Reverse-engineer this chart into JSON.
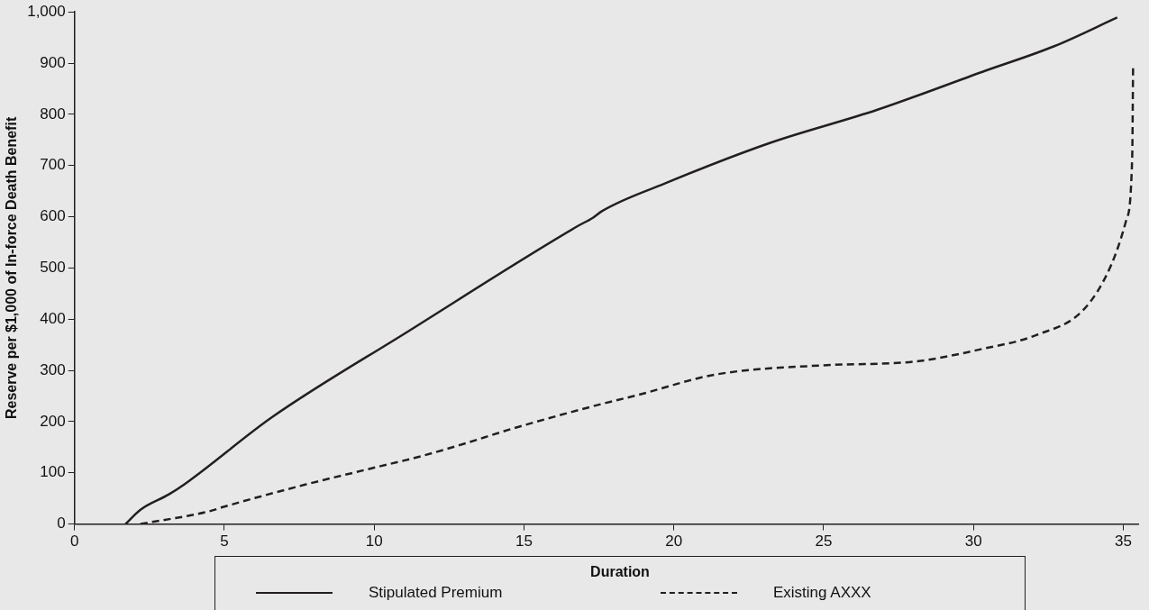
{
  "chart_data": {
    "type": "line",
    "xlabel": "Duration",
    "ylabel": "Reserve per $1,000 of In-force Death Benefit",
    "xlim": [
      0,
      35.5
    ],
    "xticks": [
      0,
      5,
      10,
      15,
      20,
      25,
      30,
      35
    ],
    "ylim": [
      0,
      1000
    ],
    "yticks": [
      0,
      100,
      200,
      300,
      400,
      500,
      600,
      700,
      800,
      900,
      {
        "value": 1000,
        "label": "1,000"
      }
    ],
    "grid": false,
    "legend": "bottom",
    "marker": "none",
    "series": [
      {
        "name": "Stipulated Premium",
        "color": "#231f20",
        "line_style": "solid",
        "x": [
          1.7,
          2.2,
          3.15,
          3.7,
          6.6,
          11.1,
          16.8,
          17.3,
          17.6,
          19.7,
          23.2,
          26.8,
          30.3,
          32.7,
          34.8
        ],
        "values": [
          0,
          28,
          58,
          79,
          209,
          375,
          582,
          598,
          611,
          665,
          744,
          809,
          883,
          933,
          989
        ]
      },
      {
        "name": "Existing AXXX",
        "color": "#231f20",
        "line_style": "dashed",
        "x": [
          2.2,
          4.5,
          5,
          7.7,
          10,
          11.6,
          12.9,
          14.6,
          17.3,
          18.8,
          21.4,
          25,
          28,
          30.3,
          32.1,
          33.7,
          34.6,
          35.1,
          35.3,
          35.33
        ],
        "values": [
          0,
          25,
          34,
          77,
          110,
          133,
          155,
          186,
          230,
          252,
          292,
          310,
          317,
          342,
          369,
          420,
          506,
          593,
          715,
          894
        ]
      }
    ]
  }
}
